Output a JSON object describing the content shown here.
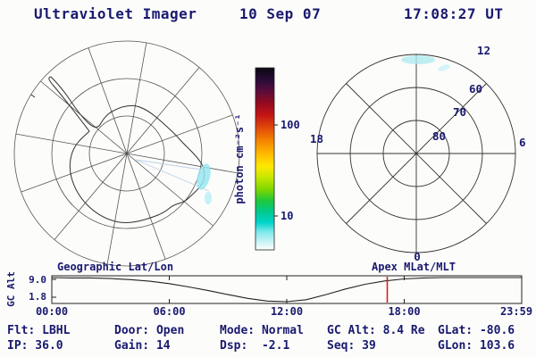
{
  "header": {
    "title": "Ultraviolet Imager",
    "date": "10 Sep 07",
    "time": "17:08:27 UT"
  },
  "colorbar": {
    "unit_label": "photon cm⁻²s⁻¹",
    "tick_labels": [
      "100",
      "10"
    ]
  },
  "geo_map": {
    "caption": "Geographic Lat/Lon"
  },
  "apex_dial": {
    "caption": "Apex MLat/MLT",
    "mlt_top": "12",
    "mlt_left": "18",
    "mlt_right": "6",
    "mlt_bottom": "0",
    "lat_rings": [
      "60",
      "70",
      "80"
    ]
  },
  "alt_strip": {
    "ylabel": "GC Alt",
    "ytick_top": "9.0",
    "ytick_bottom": "1.8",
    "xtick_labels": [
      "00:00",
      "06:00",
      "12:00",
      "18:00",
      "23:59"
    ]
  },
  "status": {
    "flt": "Flt: LBHL",
    "door": "Door: Open",
    "mode": "Mode: Normal",
    "gc_alt": "GC Alt: 8.4 Re",
    "glat": "GLat: -80.6",
    "ip": "IP: 36.0",
    "gain": "Gain: 14",
    "dsp": "Dsp:  -2.1",
    "seq": "Seq: 39",
    "glon": "GLon: 103.6"
  },
  "colors": {
    "text": "#191970",
    "marker": "#e01010",
    "emission": "#a5e9f2"
  },
  "chart_data": {
    "type": "line",
    "title": "GC Alt",
    "xlabel": "",
    "ylabel": "GC Alt",
    "ylim": [
      1.8,
      9.0
    ],
    "xticks": [
      "00:00",
      "06:00",
      "12:00",
      "18:00",
      "23:59"
    ],
    "x": [
      "00:00",
      "01:00",
      "02:00",
      "03:00",
      "04:00",
      "05:00",
      "06:00",
      "07:00",
      "08:00",
      "09:00",
      "10:00",
      "11:00",
      "12:00",
      "13:00",
      "14:00",
      "15:00",
      "16:00",
      "17:00",
      "18:00",
      "19:00",
      "20:00",
      "21:00",
      "22:00",
      "23:00",
      "23:59"
    ],
    "values": [
      9.0,
      8.9,
      8.9,
      8.7,
      8.4,
      7.9,
      7.2,
      6.2,
      5.1,
      3.9,
      2.8,
      2.0,
      1.8,
      2.4,
      3.9,
      5.6,
      7.0,
      8.0,
      8.6,
      8.9,
      9.0,
      9.0,
      9.0,
      9.0,
      9.0
    ],
    "grid": false,
    "legend": false,
    "annotations": [
      {
        "type": "vline",
        "x": "17:08",
        "color": "#e01010",
        "label": "current-time-marker"
      }
    ]
  }
}
